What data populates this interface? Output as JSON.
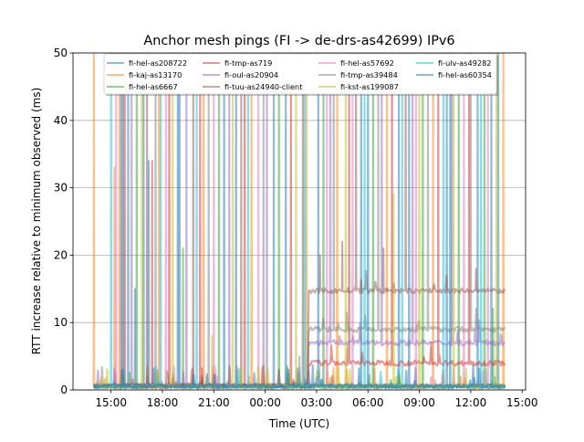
{
  "chart_data": {
    "type": "line",
    "title": "Anchor mesh pings (FI -> de-drs-as42699) IPv6",
    "xlabel": "Time (UTC)",
    "ylabel": "RTT increase relative to minimum observed (ms)",
    "x_unit": "hours since 00:00 of day 1",
    "xlim": [
      12.78,
      39.2
    ],
    "ylim": [
      0,
      50
    ],
    "grid": "y",
    "legend_placement": "top-center",
    "legend_columns": 4,
    "xticks": [
      15,
      18,
      21,
      24,
      27,
      30,
      33,
      36,
      39
    ],
    "xtick_labels": [
      "15:00",
      "18:00",
      "21:00",
      "00:00",
      "03:00",
      "06:00",
      "09:00",
      "12:00",
      "15:00"
    ],
    "yticks": [
      0,
      10,
      20,
      30,
      40,
      50
    ],
    "ytick_labels": [
      "0",
      "10",
      "20",
      "30",
      "40",
      "50"
    ],
    "time_range": [
      14.0,
      38.0
    ],
    "series": [
      {
        "name": "fi-hel-as208722",
        "color": "#1f77b4",
        "baseline": 0.5,
        "step": null,
        "spikes": [
          [
            15.6,
            60
          ],
          [
            16.0,
            60
          ],
          [
            16.9,
            60
          ],
          [
            18.9,
            60
          ],
          [
            22.3,
            60
          ],
          [
            25.2,
            60
          ],
          [
            29.6,
            60
          ],
          [
            31.8,
            60
          ],
          [
            34.6,
            60
          ],
          [
            36.4,
            60
          ],
          [
            37.6,
            60
          ]
        ]
      },
      {
        "name": "fi-kaj-as13170",
        "color": "#ff7f0e",
        "baseline": 0.6,
        "step": null,
        "spikes": [
          [
            14.0,
            60
          ],
          [
            15.2,
            33
          ],
          [
            15.5,
            60
          ],
          [
            17.8,
            60
          ],
          [
            20.4,
            60
          ],
          [
            23.2,
            60
          ],
          [
            26.4,
            60
          ],
          [
            28.2,
            60
          ],
          [
            31.1,
            60
          ],
          [
            33.8,
            60
          ],
          [
            37.9,
            60
          ]
        ]
      },
      {
        "name": "fi-hel-as6667",
        "color": "#2ca02c",
        "baseline": 0.5,
        "step": null,
        "spikes": [
          [
            16.5,
            60
          ],
          [
            19.2,
            21
          ],
          [
            21.3,
            60
          ],
          [
            24.8,
            60
          ],
          [
            27.4,
            60
          ],
          [
            30.3,
            60
          ],
          [
            33.2,
            60
          ],
          [
            35.3,
            60
          ],
          [
            36.8,
            60
          ],
          [
            37.3,
            12
          ]
        ]
      },
      {
        "name": "fi-tmp-as719",
        "color": "#d62728",
        "baseline": 0.6,
        "step": [
          26.5,
          4.0
        ],
        "spikes": [
          [
            15.8,
            60
          ],
          [
            17.4,
            34
          ],
          [
            18.4,
            60
          ],
          [
            20.2,
            60
          ],
          [
            22.8,
            60
          ],
          [
            25.5,
            60
          ],
          [
            28.9,
            60
          ],
          [
            31.4,
            60
          ],
          [
            34.1,
            60
          ],
          [
            35.9,
            60
          ]
        ]
      },
      {
        "name": "fi-oul-as20904",
        "color": "#9467bd",
        "baseline": 0.6,
        "step": [
          26.5,
          7.0
        ],
        "spikes": [
          [
            16.2,
            60
          ],
          [
            19.4,
            60
          ],
          [
            21.9,
            60
          ],
          [
            24.1,
            60
          ],
          [
            27.8,
            60
          ],
          [
            30.8,
            60
          ],
          [
            32.6,
            60
          ],
          [
            34.9,
            60
          ],
          [
            37.8,
            8
          ]
        ]
      },
      {
        "name": "fi-tuu-as24940-client",
        "color": "#8c564b",
        "baseline": 0.7,
        "step": [
          26.5,
          14.7
        ],
        "spikes": [
          [
            17.1,
            60
          ],
          [
            19.8,
            60
          ],
          [
            22.6,
            60
          ],
          [
            26.2,
            60
          ],
          [
            27.2,
            20
          ],
          [
            28.5,
            22
          ],
          [
            29.3,
            60
          ],
          [
            30.9,
            21
          ],
          [
            32.2,
            60
          ],
          [
            36.3,
            18
          ]
        ]
      },
      {
        "name": "fi-hel-as57692",
        "color": "#e377c2",
        "baseline": 0.5,
        "step": null,
        "spikes": [
          [
            15.3,
            60
          ],
          [
            18.2,
            60
          ],
          [
            21.0,
            60
          ],
          [
            23.6,
            60
          ],
          [
            27.6,
            60
          ],
          [
            29.1,
            60
          ],
          [
            32.8,
            60
          ],
          [
            35.6,
            60
          ],
          [
            37.0,
            60
          ]
        ]
      },
      {
        "name": "fi-tmp-as39484",
        "color": "#7f7f7f",
        "baseline": 0.6,
        "step": [
          26.5,
          9.0
        ],
        "spikes": [
          [
            17.6,
            60
          ],
          [
            20.7,
            60
          ],
          [
            23.9,
            60
          ],
          [
            26.0,
            5
          ],
          [
            28.0,
            60
          ],
          [
            30.6,
            60
          ],
          [
            33.5,
            60
          ],
          [
            36.0,
            60
          ]
        ]
      },
      {
        "name": "fi-kst-as199087",
        "color": "#bcbd22",
        "baseline": 0.5,
        "step": null,
        "spikes": [
          [
            16.8,
            60
          ],
          [
            18.6,
            60
          ],
          [
            20.9,
            8
          ],
          [
            22.1,
            60
          ],
          [
            25.8,
            60
          ],
          [
            28.7,
            60
          ],
          [
            31.5,
            29
          ],
          [
            33.0,
            60
          ],
          [
            35.0,
            60
          ],
          [
            37.5,
            60
          ]
        ]
      },
      {
        "name": "fi-ulv-as49282",
        "color": "#17becf",
        "baseline": 0.5,
        "step": null,
        "spikes": [
          [
            15.0,
            60
          ],
          [
            17.9,
            60
          ],
          [
            20.0,
            60
          ],
          [
            23.0,
            60
          ],
          [
            26.3,
            60
          ],
          [
            29.8,
            60
          ],
          [
            32.0,
            60
          ],
          [
            34.4,
            60
          ],
          [
            36.6,
            60
          ]
        ]
      },
      {
        "name": "fi-hel-as60354",
        "color": "#1f77b4",
        "baseline": 0.6,
        "step": null,
        "spikes": [
          [
            15.7,
            60
          ],
          [
            16.4,
            15
          ],
          [
            17.2,
            34
          ],
          [
            19.0,
            60
          ],
          [
            21.6,
            60
          ],
          [
            24.5,
            60
          ],
          [
            27.1,
            60
          ],
          [
            30.0,
            60
          ],
          [
            32.4,
            60
          ],
          [
            34.8,
            60
          ],
          [
            37.2,
            60
          ]
        ]
      }
    ]
  }
}
